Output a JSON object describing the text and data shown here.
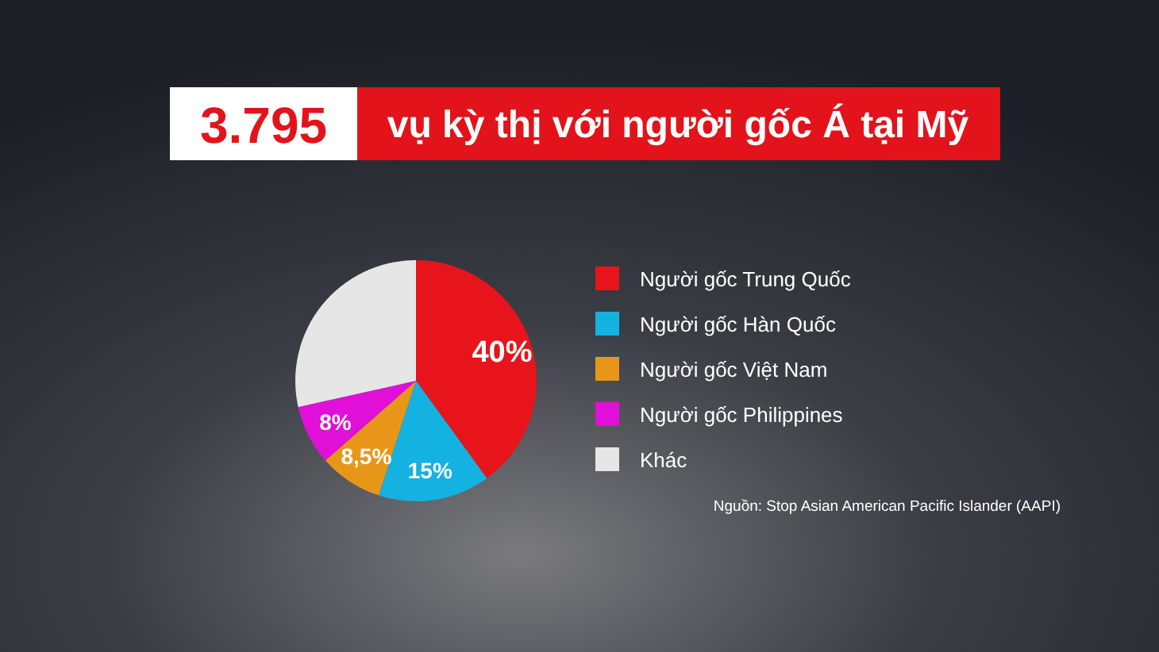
{
  "chart_data": {
    "type": "pie",
    "title": "3.795 vụ kỳ thị với người gốc Á tại Mỹ",
    "categories": [
      "Người gốc Trung Quốc",
      "Người gốc Hàn Quốc",
      "Người gốc Việt Nam",
      "Người gốc Philippines",
      "Khác"
    ],
    "values": [
      40,
      15,
      8.5,
      8,
      28.5
    ],
    "value_labels": [
      "40%",
      "15%",
      "8,5%",
      "8%",
      null
    ],
    "colors": [
      "#e8141c",
      "#14b2e0",
      "#e8961a",
      "#e010d8",
      "#e6e6e6"
    ],
    "legend": "right",
    "annotations": [
      "Nguồn: Stop Asian American Pacific Islander (AAPI)"
    ]
  }
}
